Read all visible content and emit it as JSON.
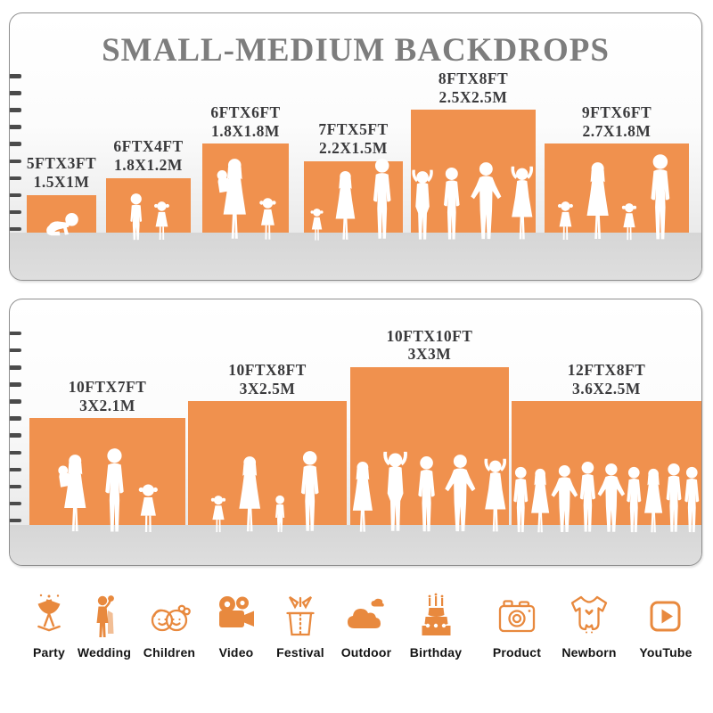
{
  "page": {
    "title": "SMALL-MEDIUM BACKDROPS"
  },
  "colors": {
    "bar_orange": "#F0914E",
    "icon_orange": "#E8893E",
    "title_gray": "#7D7D7D",
    "label_dark": "#3A3A3C",
    "ruler_dark": "#4B4B4B"
  },
  "chart_data": [
    {
      "type": "bar",
      "title": "SMALL-MEDIUM BACKDROPS",
      "unit": "feet",
      "axis": "left-ruler",
      "ylim": [
        0,
        10
      ],
      "ruler": [
        10,
        9,
        8,
        7,
        6,
        5,
        4,
        3,
        2,
        1
      ],
      "bars": [
        {
          "label_ft": "5FTX3FT",
          "label_m": "1.5X1M",
          "w_ft": 5,
          "h_ft": 3,
          "figures": [
            {
              "t": "baby",
              "h": 1.45
            }
          ]
        },
        {
          "label_ft": "6FTX4FT",
          "label_m": "1.8X1.2M",
          "w_ft": 6,
          "h_ft": 4,
          "figures": [
            {
              "t": "boy",
              "h": 2.9
            },
            {
              "t": "girl",
              "h": 2.4
            }
          ]
        },
        {
          "label_ft": "6FTX6FT",
          "label_m": "1.8X1.8M",
          "w_ft": 6,
          "h_ft": 6,
          "figures": [
            {
              "t": "womanbaby",
              "h": 4.9
            },
            {
              "t": "girl",
              "h": 2.6
            }
          ]
        },
        {
          "label_ft": "7FTX5FT",
          "label_m": "2.2X1.5M",
          "w_ft": 7,
          "h_ft": 5,
          "figures": [
            {
              "t": "girl",
              "h": 2.0
            },
            {
              "t": "woman",
              "h": 4.2
            },
            {
              "t": "man",
              "h": 4.9
            }
          ]
        },
        {
          "label_ft": "8FTX8FT",
          "label_m": "2.5X2.5M",
          "w_ft": 8,
          "h_ft": 8,
          "figures": [
            {
              "t": "manup",
              "h": 4.3
            },
            {
              "t": "man",
              "h": 4.4
            },
            {
              "t": "manhips",
              "h": 4.7
            },
            {
              "t": "womanup",
              "h": 4.5
            }
          ]
        },
        {
          "label_ft": "9FTX6FT",
          "label_m": "2.7X1.8M",
          "w_ft": 9,
          "h_ft": 6,
          "figures": [
            {
              "t": "girl",
              "h": 2.4
            },
            {
              "t": "woman",
              "h": 4.7
            },
            {
              "t": "girl",
              "h": 2.3
            },
            {
              "t": "man",
              "h": 5.2
            }
          ]
        }
      ]
    },
    {
      "type": "bar",
      "title": "",
      "unit": "feet",
      "axis": "left-ruler",
      "ylim": [
        0,
        12
      ],
      "ruler": [
        12,
        11,
        10,
        9,
        8,
        7,
        6,
        5,
        4,
        3,
        2,
        1
      ],
      "bars": [
        {
          "label_ft": "10FTX7FT",
          "label_m": "3X2.1M",
          "w_ft": 10,
          "h_ft": 7,
          "figures": [
            {
              "t": "womanbaby",
              "h": 4.7
            },
            {
              "t": "man",
              "h": 5.1
            },
            {
              "t": "girl",
              "h": 3.0
            }
          ]
        },
        {
          "label_ft": "10FTX8FT",
          "label_m": "3X2.5M",
          "w_ft": 10,
          "h_ft": 8,
          "figures": [
            {
              "t": "girl",
              "h": 2.3
            },
            {
              "t": "woman",
              "h": 4.6
            },
            {
              "t": "boy",
              "h": 2.3
            },
            {
              "t": "man",
              "h": 4.9
            }
          ]
        },
        {
          "label_ft": "10FTX10FT",
          "label_m": "3X3M",
          "w_ft": 10,
          "h_ft": 10,
          "figures": [
            {
              "t": "woman",
              "h": 4.3
            },
            {
              "t": "manup",
              "h": 4.9
            },
            {
              "t": "man",
              "h": 4.6
            },
            {
              "t": "manhips",
              "h": 4.7
            },
            {
              "t": "womanup",
              "h": 4.5
            }
          ]
        },
        {
          "label_ft": "12FTX8FT",
          "label_m": "3.6X2.5M",
          "w_ft": 12,
          "h_ft": 8,
          "figures": [
            {
              "t": "man",
              "h": 4.0
            },
            {
              "t": "woman",
              "h": 3.9
            },
            {
              "t": "manhips",
              "h": 4.1
            },
            {
              "t": "man",
              "h": 4.3
            },
            {
              "t": "manhips",
              "h": 4.2
            },
            {
              "t": "man",
              "h": 4.0
            },
            {
              "t": "woman",
              "h": 3.9
            },
            {
              "t": "man",
              "h": 4.2
            },
            {
              "t": "man",
              "h": 4.0
            }
          ]
        }
      ]
    }
  ],
  "icons": [
    {
      "name": "party",
      "label": "Party"
    },
    {
      "name": "wedding",
      "label": "Wedding"
    },
    {
      "name": "children",
      "label": "Children"
    },
    {
      "name": "video",
      "label": "Video"
    },
    {
      "name": "festival",
      "label": "Festival"
    },
    {
      "name": "outdoor",
      "label": "Outdoor"
    },
    {
      "name": "birthday",
      "label": "Birthday"
    },
    {
      "name": "product",
      "label": "Product"
    },
    {
      "name": "newborn",
      "label": "Newborn"
    },
    {
      "name": "youtube",
      "label": "YouTube"
    }
  ]
}
